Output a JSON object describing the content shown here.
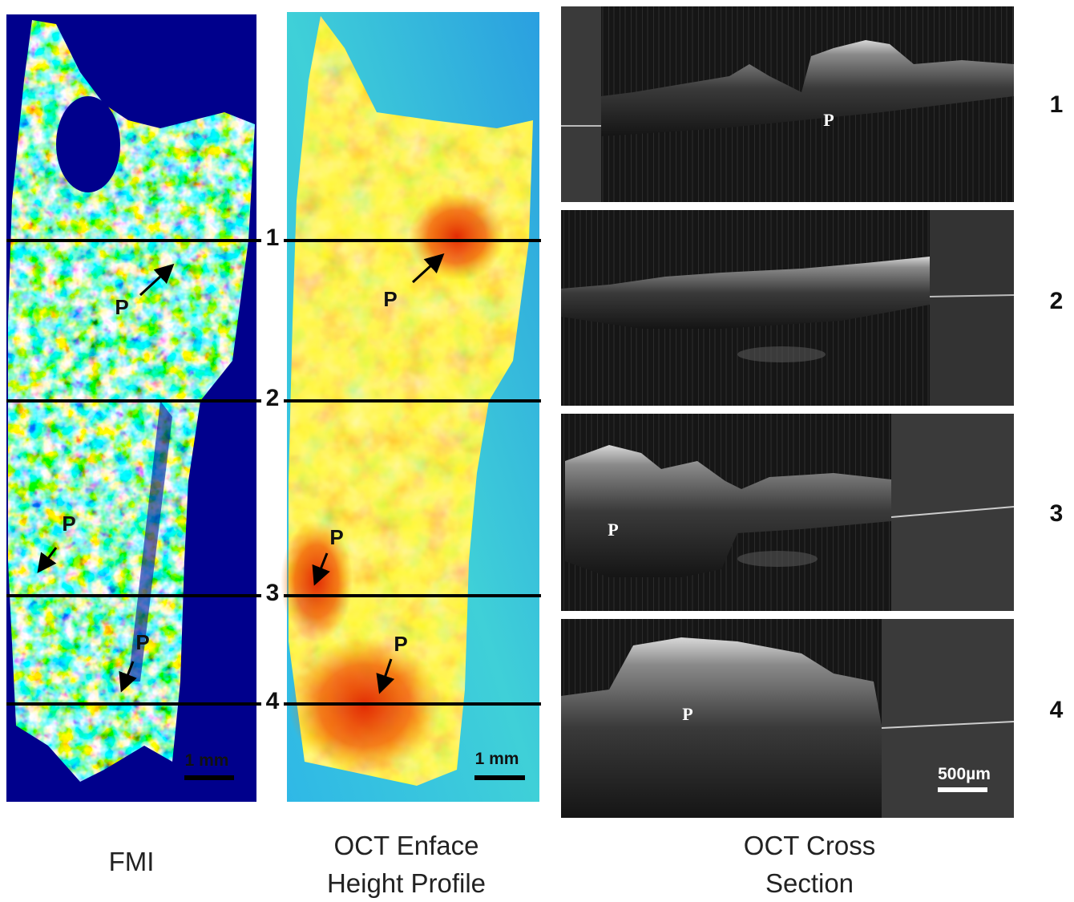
{
  "section_lines": [
    "1",
    "2",
    "3",
    "4"
  ],
  "panels": {
    "fmi": {
      "caption": "FMI",
      "scale_bar": "1 mm",
      "markers": [
        "P",
        "P",
        "P"
      ]
    },
    "enface": {
      "caption_lines": [
        "OCT Enface",
        "Height Profile"
      ],
      "scale_bar": "1 mm",
      "markers": [
        "P",
        "P",
        "P"
      ]
    },
    "cross_section": {
      "caption_lines": [
        "OCT Cross",
        "Section"
      ],
      "scale_bar": "500µm",
      "slices": [
        {
          "label": "1",
          "marker": "P"
        },
        {
          "label": "2"
        },
        {
          "label": "3",
          "marker": "P"
        },
        {
          "label": "4",
          "marker": "P"
        }
      ]
    }
  }
}
